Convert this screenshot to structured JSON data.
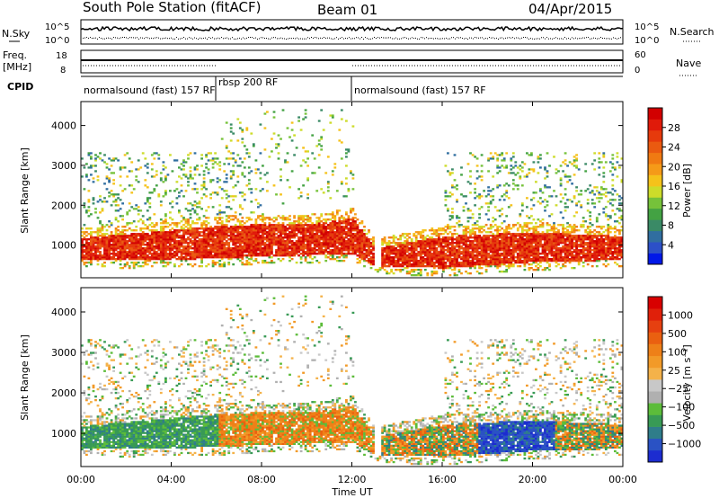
{
  "header": {
    "station": "South Pole Station (fitACF)",
    "beam": "Beam 01",
    "date": "04/Apr/2015"
  },
  "strip_labels": {
    "nsky": "N.Sky",
    "nsearch": "N.Search",
    "freq": "Freq.",
    "freq_unit": "[MHz]",
    "nave": "Nave",
    "cpid": "CPID",
    "nsky_ticks": [
      "10^5",
      "10^0"
    ],
    "freq_ticks": [
      "18",
      "8"
    ],
    "nave_ticks": [
      "60",
      "0"
    ]
  },
  "cpid_segments": [
    {
      "label": "normalsound (fast) 157 RF",
      "start_h": 0,
      "end_h": 6
    },
    {
      "label": "rbsp 200 RF",
      "start_h": 6,
      "end_h": 12
    },
    {
      "label": "normalsound (fast) 157 RF",
      "start_h": 12,
      "end_h": 24
    }
  ],
  "chart_data": [
    {
      "type": "heatmap",
      "parameter": "Power",
      "ylabel": "Slant Range [km]",
      "xlabel": "Time UT",
      "xlim": [
        0,
        24
      ],
      "ylim": [
        180,
        4600
      ],
      "x_ticks": [
        "00:00",
        "04:00",
        "08:00",
        "12:00",
        "16:00",
        "20:00",
        "00:00"
      ],
      "y_ticks": [
        1000,
        2000,
        3000,
        4000
      ],
      "colorbar": {
        "label": "Power [dB]",
        "ticks": [
          "28",
          "24",
          "20",
          "16",
          "12",
          "8",
          "4"
        ],
        "colors": [
          "#0018e8",
          "#2c50c8",
          "#306ea0",
          "#3a8a66",
          "#43a243",
          "#76c23a",
          "#cddc2a",
          "#f5c21a",
          "#f59a18",
          "#f07a12",
          "#ea5a10",
          "#e63a0c",
          "#e01a0a",
          "#d20000"
        ]
      },
      "echo_band": [
        {
          "t": 0,
          "lo": 620,
          "hi": 1150
        },
        {
          "t": 2,
          "lo": 600,
          "hi": 1250
        },
        {
          "t": 4,
          "lo": 620,
          "hi": 1350
        },
        {
          "t": 6,
          "lo": 640,
          "hi": 1450
        },
        {
          "t": 8,
          "lo": 700,
          "hi": 1500
        },
        {
          "t": 10,
          "lo": 720,
          "hi": 1500
        },
        {
          "t": 12,
          "lo": 760,
          "hi": 1650
        },
        {
          "t": 13,
          "lo": 450,
          "hi": 900
        },
        {
          "t": 16,
          "lo": 400,
          "hi": 1200
        },
        {
          "t": 20,
          "lo": 550,
          "hi": 1300
        },
        {
          "t": 24,
          "lo": 600,
          "hi": 1200
        }
      ]
    },
    {
      "type": "heatmap",
      "parameter": "Velocity",
      "ylabel": "Slant Range [km]",
      "xlabel": "Time UT",
      "xlim": [
        0,
        24
      ],
      "ylim": [
        180,
        4600
      ],
      "x_ticks": [
        "00:00",
        "04:00",
        "08:00",
        "12:00",
        "16:00",
        "20:00",
        "00:00"
      ],
      "y_ticks": [
        1000,
        2000,
        3000,
        4000
      ],
      "colorbar": {
        "label": "Velocity [m s⁻¹]",
        "ticks": [
          "1000",
          "500",
          "100",
          "25",
          "−25",
          "−100",
          "−500",
          "−1000"
        ],
        "colors": [
          "#1c2cd0",
          "#2a52c4",
          "#2f7d8a",
          "#389a55",
          "#5cbc3a",
          "#b0b0b0",
          "#c8c8c8",
          "#f4b24a",
          "#f29a28",
          "#ee8018",
          "#ea6010",
          "#e64010",
          "#e0200a",
          "#d80000"
        ]
      }
    }
  ]
}
